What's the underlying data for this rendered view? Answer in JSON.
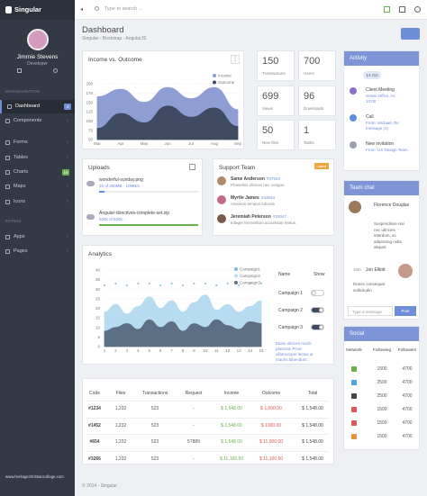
{
  "sidebar": {
    "brand": "Singular",
    "user": {
      "name": "Jimmie Stevens",
      "role": "Developer"
    },
    "sections": [
      {
        "title": "MAIN NAVIGATION",
        "items": [
          {
            "label": "Dashboard",
            "badge": 4,
            "active": true
          },
          {
            "label": "Components"
          },
          {
            "label": "Forms"
          },
          {
            "label": "Tables"
          },
          {
            "label": "Charts",
            "badge": 16
          },
          {
            "label": "Maps"
          },
          {
            "label": "Icons"
          }
        ]
      },
      {
        "title": "EXTRAS",
        "items": [
          {
            "label": "Apps"
          },
          {
            "label": "Pages"
          }
        ]
      }
    ],
    "footer": "www.heritagechristiancollege.com"
  },
  "topbar": {
    "search_placeholder": "Type to search ..."
  },
  "header": {
    "title": "Dashboard",
    "breadcrumb": "Singular - Bootstrap - AngularJS"
  },
  "income_chart": {
    "title": "Income vs. Outcome",
    "type": "area",
    "categories": [
      "Mar",
      "Apr",
      "May",
      "Jun",
      "Jul",
      "Aug",
      "Sep"
    ],
    "series": [
      {
        "name": "Income",
        "color": "#8e9dd4",
        "style": "area",
        "values": [
          165,
          185,
          150,
          190,
          160,
          190,
          130
        ]
      },
      {
        "name": "Outcome",
        "color": "#3f4a63",
        "style": "area",
        "values": [
          80,
          120,
          95,
          140,
          110,
          135,
          85
        ]
      }
    ],
    "ylim": [
      50,
      200
    ],
    "yticks": [
      50,
      75,
      100,
      125,
      150,
      175,
      200
    ],
    "grid": true
  },
  "stats": [
    {
      "value": 150,
      "label": "Transactions"
    },
    {
      "value": 700,
      "label": "Users"
    },
    {
      "value": 699,
      "label": "Views"
    },
    {
      "value": 96,
      "label": "Downloads"
    },
    {
      "value": 50,
      "label": "New files"
    },
    {
      "value": 1,
      "label": "Tasks"
    }
  ],
  "activity": {
    "title": "Activity",
    "date": "14 Oct",
    "items": [
      {
        "title": "Client Meeting",
        "lines": [
          "Green Office, Ac",
          "10:00"
        ],
        "color": "#8c6fc9"
      },
      {
        "title": "Call",
        "lines": [
          "From: Michael, Re",
          "message (1)"
        ],
        "color": "#5b8fe0"
      },
      {
        "title": "New invitation",
        "lines": [
          "From: UX Design Team"
        ],
        "color": "#9aa1ad"
      }
    ]
  },
  "uploads": {
    "title": "Uploads",
    "files": [
      {
        "name": "wonderful-sunday.png",
        "info": "15 of 300MB - 10MB/s",
        "progress": 5,
        "color": "#5b8fe0"
      },
      {
        "name": "Angular-directives-complete-set.zip",
        "info": "500k of 500k -",
        "progress": 100,
        "color": "#6ab04c"
      }
    ]
  },
  "support": {
    "title": "Support Team",
    "badge": "Latest",
    "people": [
      {
        "name": "Same Anderson",
        "id": "#47543",
        "text": "Phasellus ultrices nec congue."
      },
      {
        "name": "Myrtle James",
        "id": "#43534",
        "text": "Vivamus tempus lobortis"
      },
      {
        "name": "Jeremiah Peterson",
        "id": "#23047",
        "text": "Integer fermentum accumsan metus."
      }
    ]
  },
  "chat": {
    "title": "Team chat",
    "messages": [
      {
        "author": "Florence Douglas",
        "text": [
          "Suspendisse nisi",
          "nec ultricies",
          "interdum, ac",
          "adipiscing nulla",
          "aliquet."
        ]
      },
      {
        "time": "10m",
        "author": "Jon Elliott",
        "text": [
          "Donec consequat",
          "sollicitudin"
        ]
      }
    ],
    "input_placeholder": "Type a message",
    "button": "Post"
  },
  "analytics": {
    "title": "Analytics",
    "chart": {
      "type": "area",
      "x": [
        1,
        2,
        3,
        4,
        5,
        6,
        7,
        8,
        9,
        10,
        11,
        12,
        13,
        14,
        15
      ],
      "xlim": [
        1,
        15
      ],
      "xticks": [
        1,
        2,
        3,
        4,
        5,
        6,
        7,
        8,
        9,
        10,
        11,
        12,
        13,
        14,
        15
      ],
      "series": [
        {
          "name": "Campaign1",
          "color": "#7fb8d8",
          "style": "dots",
          "values": [
            32,
            33,
            32,
            33,
            33,
            32,
            33,
            32,
            33,
            33,
            32,
            33,
            32,
            33,
            33
          ]
        },
        {
          "name": "Campaign2",
          "color": "#b7dcf2",
          "style": "area",
          "values": [
            18,
            22,
            17,
            21,
            26,
            20,
            24,
            18,
            23,
            27,
            19,
            22,
            18,
            21,
            24
          ]
        },
        {
          "name": "Campaign3",
          "color": "#5d6f84",
          "style": "area",
          "values": [
            8,
            10,
            12,
            9,
            14,
            10,
            13,
            8,
            12,
            10,
            14,
            11,
            9,
            13,
            12
          ]
        }
      ],
      "ylim": [
        0,
        40
      ],
      "yticks": [
        0,
        5,
        10,
        15,
        20,
        25,
        30,
        35,
        40
      ],
      "grid": true
    },
    "headers": [
      "Name",
      "Show"
    ],
    "rows": [
      {
        "name": "Campaign 1",
        "show": false
      },
      {
        "name": "Campaign 2",
        "show": true
      },
      {
        "name": "Campaign 3",
        "show": true
      }
    ],
    "note": [
      "Etiam ultrices morbi",
      "placerat. Proin",
      "ullamcorper lectus ut",
      "mauris bibendum."
    ]
  },
  "table": {
    "headers": [
      "Code",
      "Files",
      "Transactions",
      "Request",
      "Income",
      "Outcome",
      "Total"
    ],
    "rows": [
      [
        "#1234",
        "1,232",
        "523",
        "-",
        "$ 1,548.00",
        "$ 1,000.00",
        "$ 1,548.00"
      ],
      [
        "#1452",
        "1,232",
        "523",
        "-",
        "$ 1,548.00",
        "$ 1000.00",
        "$ 1,548.00"
      ],
      [
        "#654",
        "1,232",
        "523",
        "57889",
        "$ 1,548.00",
        "$ 11,000.00",
        "$ 1,548.00"
      ],
      [
        "#3266",
        "1,232",
        "523",
        "-",
        "$ 11,100.50",
        "$ 11,100.50",
        "$ 1,548.00"
      ]
    ]
  },
  "social": {
    "title": "Social",
    "headers": [
      "Network",
      "Following",
      "Followers"
    ],
    "rows": [
      {
        "color": "#6ab04c",
        "values": [
          1500,
          4700
        ]
      },
      {
        "color": "#4ea3e0",
        "values": [
          2500,
          4700
        ]
      },
      {
        "color": "#444",
        "values": [
          2500,
          4700
        ]
      },
      {
        "color": "#e05555",
        "values": [
          1500,
          4700
        ]
      },
      {
        "color": "#e05555",
        "values": [
          1500,
          4700
        ]
      },
      {
        "color": "#e8913a",
        "values": [
          1500,
          4700
        ]
      }
    ]
  },
  "footer": "© 2014 - Singular"
}
